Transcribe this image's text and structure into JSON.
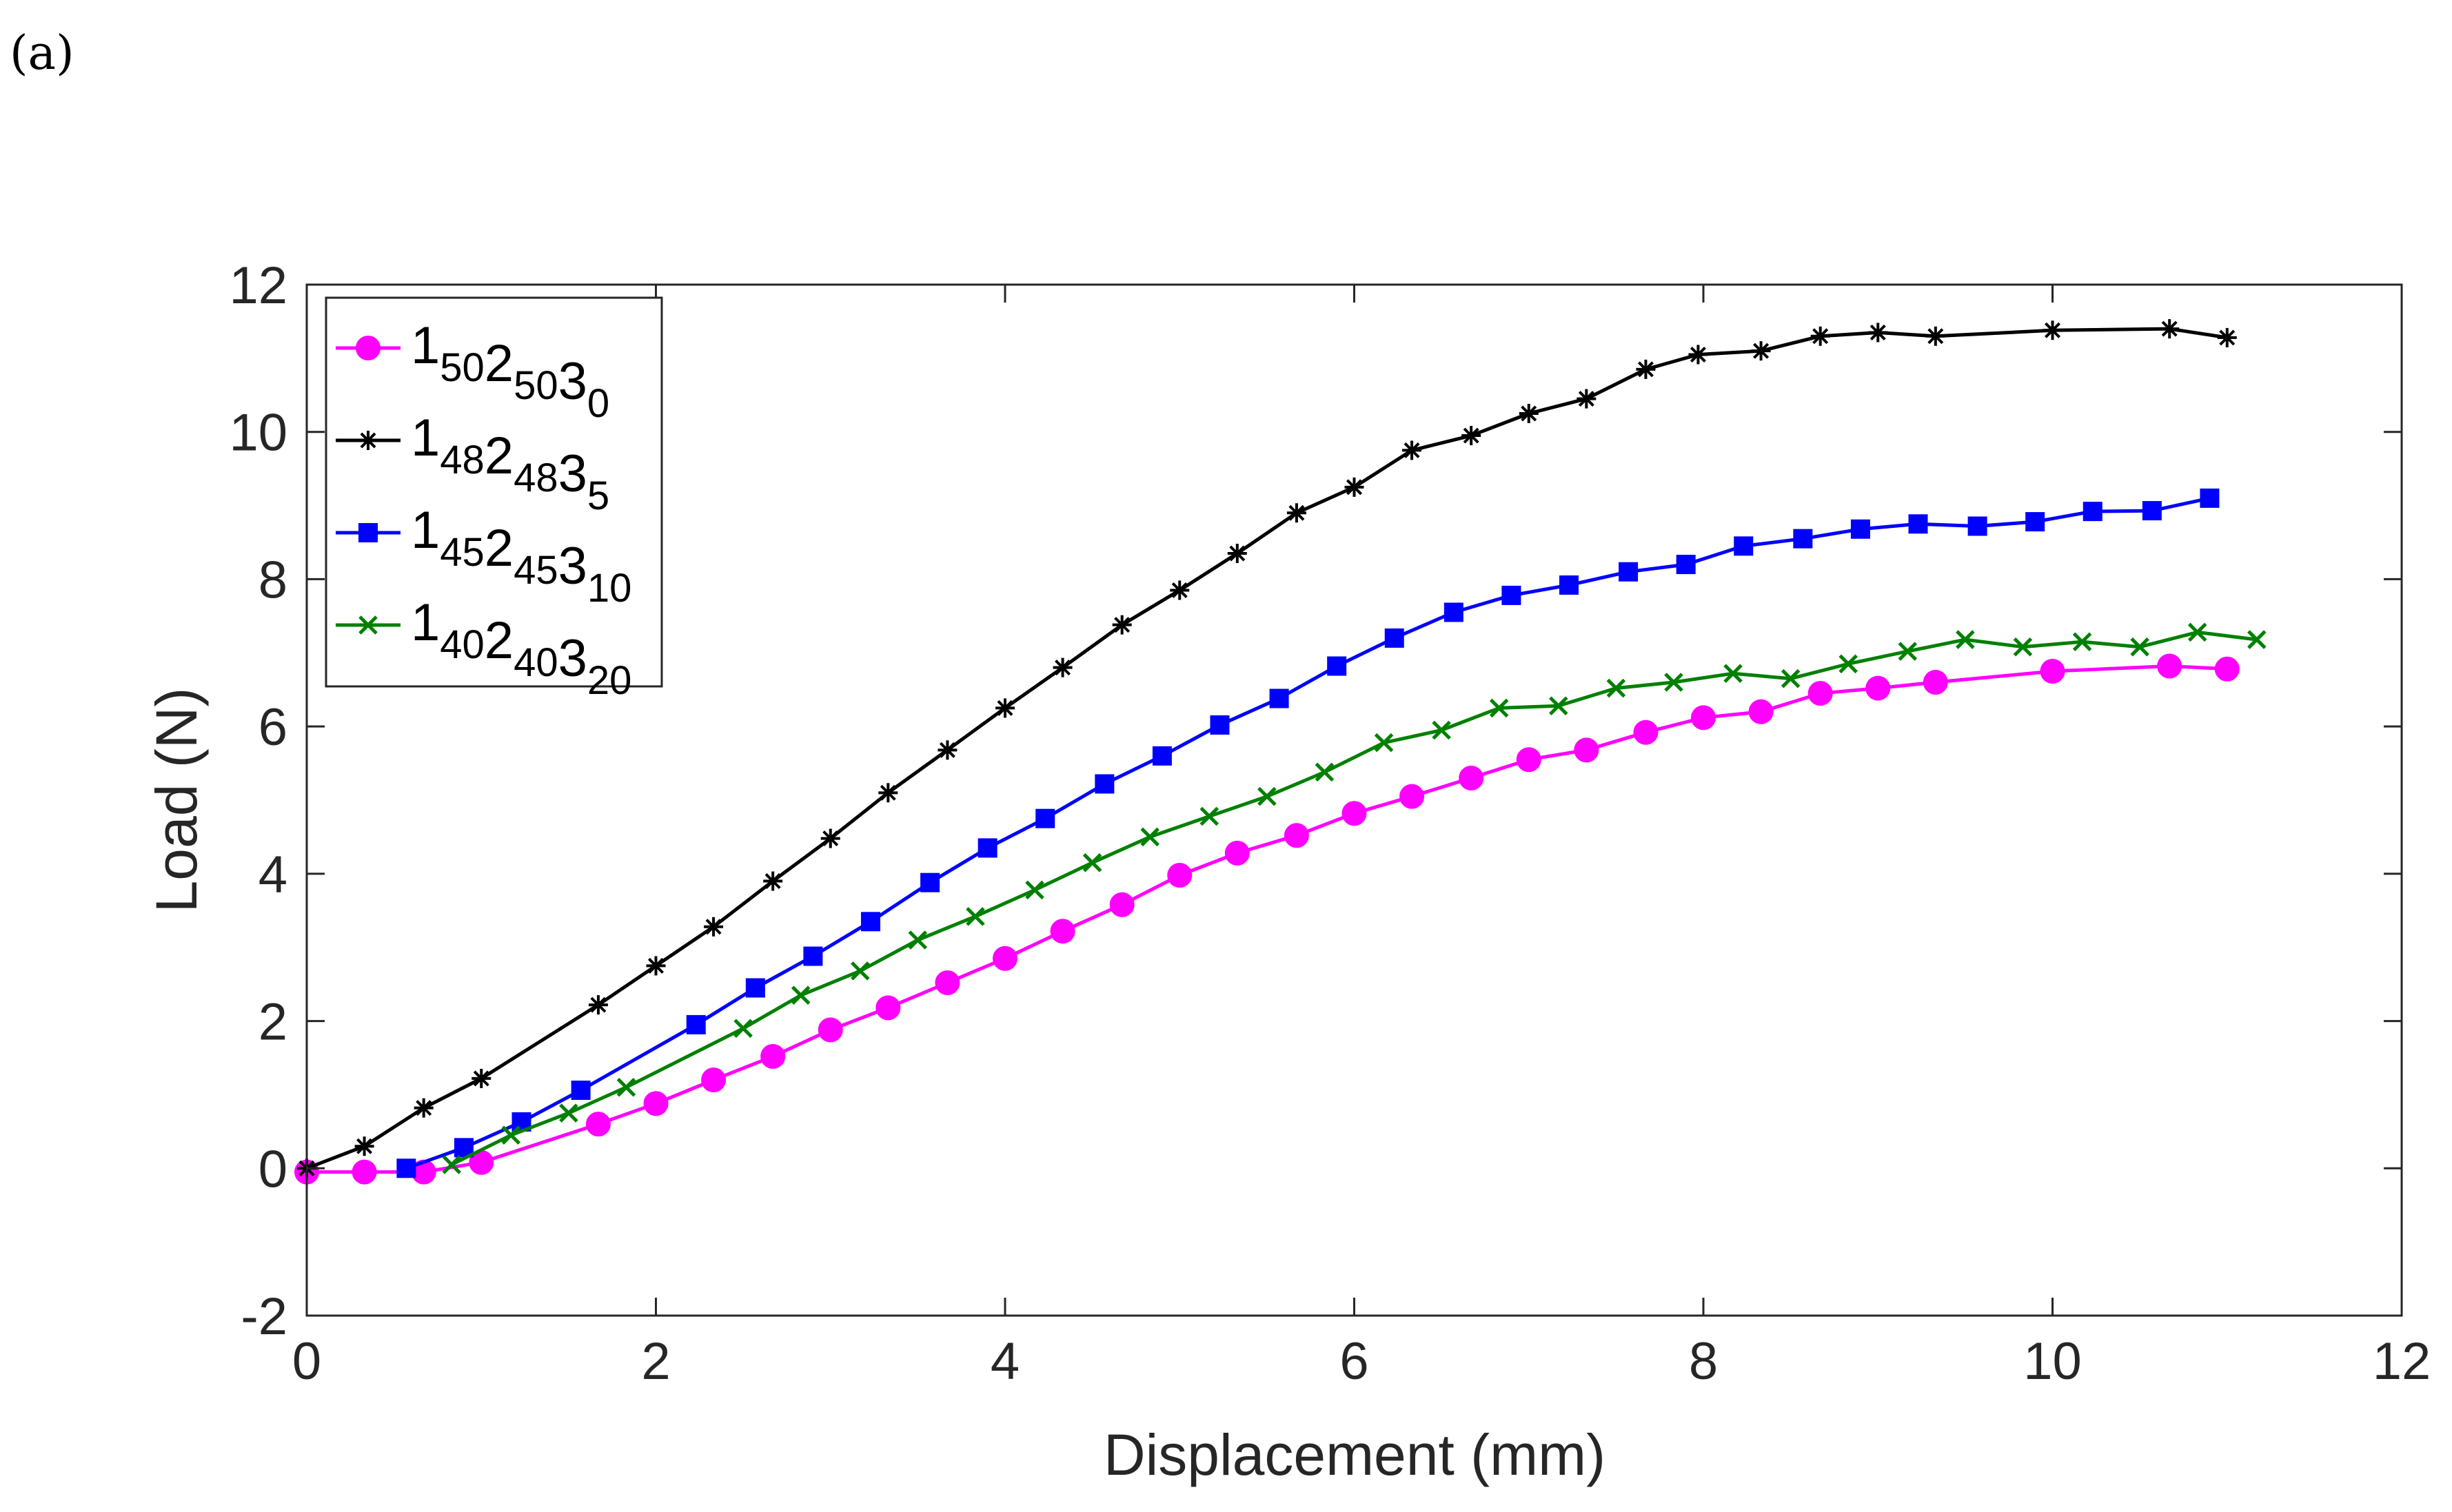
{
  "panel_label": "(a)",
  "chart_data": {
    "type": "line",
    "title": "",
    "xlabel": "Displacement (mm)",
    "ylabel": "Load (N)",
    "xlim": [
      0,
      12
    ],
    "ylim": [
      -2,
      12
    ],
    "xticks": [
      0,
      2,
      4,
      6,
      8,
      10,
      12
    ],
    "yticks": [
      -2,
      0,
      2,
      4,
      6,
      8,
      10,
      12
    ],
    "xtick_labels": [
      "0",
      "2",
      "4",
      "6",
      "8",
      "10",
      "12"
    ],
    "ytick_labels": [
      "-2",
      "0",
      "2",
      "4",
      "6",
      "8",
      "10",
      "12"
    ],
    "grid": false,
    "legend_position": "top-left",
    "series": [
      {
        "name": "1₅₀2₅₀3₀",
        "legend": {
          "parts": [
            [
              "1",
              "50"
            ],
            [
              "2",
              "50"
            ],
            [
              "3",
              "0"
            ]
          ]
        },
        "color": "#ff00ff",
        "marker": "circle",
        "x": [
          0,
          0.33,
          0.67,
          1.0,
          1.67,
          2.0,
          2.33,
          2.67,
          3.0,
          3.33,
          3.67,
          4.0,
          4.33,
          4.67,
          5.0,
          5.33,
          5.67,
          6.0,
          6.33,
          6.67,
          7.0,
          7.33,
          7.67,
          8.0,
          8.33,
          8.67,
          9.0,
          9.33,
          10.0,
          10.67,
          11.0
        ],
        "y": [
          -0.05,
          -0.05,
          -0.05,
          0.08,
          0.6,
          0.88,
          1.2,
          1.52,
          1.88,
          2.18,
          2.52,
          2.85,
          3.22,
          3.58,
          3.98,
          4.28,
          4.52,
          4.82,
          5.05,
          5.3,
          5.55,
          5.68,
          5.92,
          6.12,
          6.2,
          6.45,
          6.52,
          6.6,
          6.75,
          6.82,
          6.78
        ]
      },
      {
        "name": "1₄₈2₄₈3₅",
        "legend": {
          "parts": [
            [
              "1",
              "48"
            ],
            [
              "2",
              "48"
            ],
            [
              "3",
              "5"
            ]
          ]
        },
        "color": "#000000",
        "marker": "asterisk",
        "x": [
          0,
          0.33,
          0.67,
          1.0,
          1.67,
          2.0,
          2.33,
          2.67,
          3.0,
          3.33,
          3.67,
          4.0,
          4.33,
          4.67,
          5.0,
          5.33,
          5.67,
          6.0,
          6.33,
          6.67,
          7.0,
          7.33,
          7.67,
          7.97,
          8.33,
          8.67,
          9.0,
          9.33,
          10.0,
          10.67,
          11.0
        ],
        "y": [
          0,
          0.3,
          0.82,
          1.22,
          2.22,
          2.75,
          3.28,
          3.9,
          4.48,
          5.1,
          5.68,
          6.25,
          6.8,
          7.38,
          7.85,
          8.35,
          8.9,
          9.25,
          9.75,
          9.95,
          10.25,
          10.45,
          10.85,
          11.05,
          11.1,
          11.3,
          11.35,
          11.3,
          11.38,
          11.4,
          11.28
        ]
      },
      {
        "name": "1₄₅2₄₅3₁₀",
        "legend": {
          "parts": [
            [
              "1",
              "45"
            ],
            [
              "2",
              "45"
            ],
            [
              "3",
              "10"
            ]
          ]
        },
        "color": "#0000ff",
        "marker": "square",
        "x": [
          0.57,
          0.9,
          1.23,
          1.57,
          2.23,
          2.57,
          2.9,
          3.23,
          3.57,
          3.9,
          4.23,
          4.57,
          4.9,
          5.23,
          5.57,
          5.9,
          6.23,
          6.57,
          6.9,
          7.23,
          7.57,
          7.9,
          8.23,
          8.57,
          8.9,
          9.23,
          9.57,
          9.9,
          10.23,
          10.57,
          10.9
        ],
        "y": [
          0,
          0.28,
          0.63,
          1.06,
          1.95,
          2.45,
          2.88,
          3.35,
          3.88,
          4.35,
          4.75,
          5.22,
          5.6,
          6.02,
          6.38,
          6.82,
          7.2,
          7.55,
          7.78,
          7.92,
          8.1,
          8.2,
          8.45,
          8.55,
          8.68,
          8.75,
          8.72,
          8.78,
          8.92,
          8.93,
          9.1
        ]
      },
      {
        "name": "1₄₀2₄₀3₂₀",
        "legend": {
          "parts": [
            [
              "1",
              "40"
            ],
            [
              "2",
              "40"
            ],
            [
              "3",
              "20"
            ]
          ]
        },
        "color": "#008000",
        "marker": "x",
        "x": [
          0.83,
          1.17,
          1.5,
          1.83,
          2.5,
          2.83,
          3.17,
          3.5,
          3.83,
          4.17,
          4.5,
          4.83,
          5.17,
          5.5,
          5.83,
          6.17,
          6.5,
          6.83,
          7.17,
          7.5,
          7.83,
          8.17,
          8.5,
          8.83,
          9.17,
          9.5,
          9.83,
          10.17,
          10.5,
          10.83,
          11.17
        ],
        "y": [
          0.05,
          0.45,
          0.75,
          1.1,
          1.9,
          2.35,
          2.68,
          3.1,
          3.42,
          3.78,
          4.15,
          4.5,
          4.78,
          5.05,
          5.38,
          5.78,
          5.95,
          6.25,
          6.28,
          6.52,
          6.6,
          6.72,
          6.65,
          6.85,
          7.02,
          7.18,
          7.08,
          7.15,
          7.08,
          7.28,
          7.18
        ]
      }
    ]
  }
}
